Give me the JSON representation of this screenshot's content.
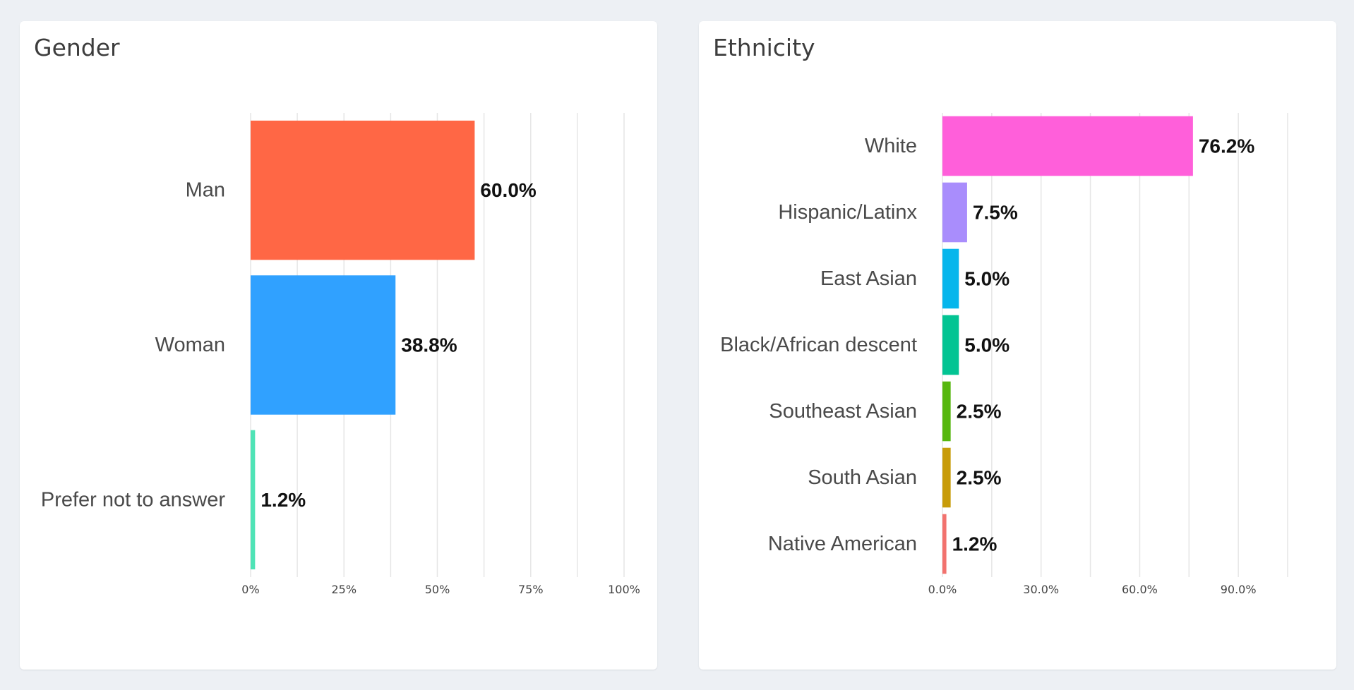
{
  "chart_data": [
    {
      "type": "bar",
      "orientation": "horizontal",
      "title": "Gender",
      "categories": [
        "Man",
        "Woman",
        "Prefer not to answer"
      ],
      "values": [
        60.0,
        38.8,
        1.2
      ],
      "value_labels": [
        "60.0%",
        "38.8%",
        "1.2%"
      ],
      "colors": [
        "#ff6745",
        "#30a1ff",
        "#4fe3b6"
      ],
      "xlim": [
        0,
        100
      ],
      "ticks": [
        0,
        25,
        50,
        75,
        100
      ],
      "tick_labels": [
        "0%",
        "25%",
        "50%",
        "75%",
        "100%"
      ],
      "minor_grid": [
        12.5,
        37.5,
        62.5,
        87.5
      ],
      "grid": true,
      "legend": "none"
    },
    {
      "type": "bar",
      "orientation": "horizontal",
      "title": "Ethnicity",
      "categories": [
        "White",
        "Hispanic/Latinx",
        "East Asian",
        "Black/African descent",
        "Southeast Asian",
        "South Asian",
        "Native American"
      ],
      "values": [
        76.2,
        7.5,
        5.0,
        5.0,
        2.5,
        2.5,
        1.2
      ],
      "value_labels": [
        "76.2%",
        "7.5%",
        "5.0%",
        "5.0%",
        "2.5%",
        "2.5%",
        "1.2%"
      ],
      "colors": [
        "#ff5fda",
        "#a98dfc",
        "#06b6ec",
        "#03c493",
        "#57b70f",
        "#c89c0a",
        "#f2726e"
      ],
      "xlim": [
        0,
        105
      ],
      "ticks": [
        0,
        30,
        60,
        90
      ],
      "tick_labels": [
        "0.0%",
        "30.0%",
        "60.0%",
        "90.0%"
      ],
      "minor_grid": [
        15,
        45,
        75,
        105
      ],
      "grid": true,
      "legend": "none"
    }
  ]
}
